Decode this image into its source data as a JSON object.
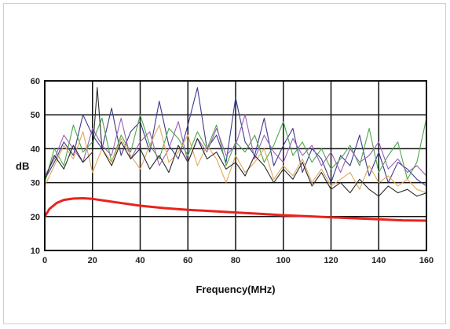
{
  "chart_data": {
    "type": "line",
    "title": "",
    "xlabel": "Frequency(MHz)",
    "ylabel": "dB",
    "xlim": [
      0,
      160
    ],
    "ylim": [
      10,
      60
    ],
    "x_ticks": [
      "0",
      "20",
      "40",
      "60",
      "80",
      "100",
      "120",
      "140",
      "160"
    ],
    "y_ticks": [
      "10",
      "20",
      "30",
      "40",
      "50",
      "60"
    ],
    "grid": true,
    "legend": "none",
    "series": [
      {
        "color": "#e8231d",
        "x": [
          0,
          2,
          5,
          8,
          12,
          16,
          20,
          25,
          30,
          40,
          50,
          60,
          70,
          80,
          90,
          100,
          110,
          120,
          130,
          140,
          150,
          160
        ],
        "values": [
          20,
          22.3,
          24,
          24.9,
          25.3,
          25.4,
          25.2,
          24.7,
          24.2,
          23.2,
          22.5,
          22,
          21.6,
          21.2,
          20.8,
          20.4,
          20.1,
          19.8,
          19.5,
          19.2,
          18.9,
          18.8
        ]
      },
      {
        "color": "#3a3a8c",
        "x": [
          0,
          4,
          8,
          12,
          16,
          20,
          24,
          28,
          32,
          36,
          40,
          44,
          48,
          52,
          56,
          60,
          64,
          68,
          72,
          76,
          80,
          84,
          88,
          92,
          96,
          100,
          104,
          108,
          112,
          116,
          120,
          124,
          128,
          132,
          136,
          140,
          144,
          148,
          152,
          156,
          160
        ],
        "values": [
          31,
          36,
          42,
          38,
          50,
          44,
          40,
          52,
          38,
          45,
          48,
          39,
          54,
          41,
          37,
          47,
          58,
          40,
          44,
          36,
          55,
          42,
          38,
          49,
          35,
          41,
          46,
          33,
          40,
          37,
          30,
          38,
          35,
          44,
          32,
          39,
          30,
          36,
          34,
          31,
          29
        ]
      },
      {
        "color": "#4aa84a",
        "x": [
          0,
          4,
          8,
          12,
          16,
          20,
          24,
          28,
          32,
          36,
          40,
          44,
          48,
          52,
          56,
          60,
          64,
          68,
          72,
          76,
          80,
          84,
          88,
          92,
          96,
          100,
          104,
          108,
          112,
          116,
          120,
          124,
          128,
          132,
          136,
          140,
          144,
          148,
          152,
          156,
          160
        ],
        "values": [
          30,
          40,
          35,
          47,
          39,
          42,
          49,
          36,
          44,
          39,
          50,
          41,
          37,
          46,
          43,
          38,
          45,
          40,
          47,
          35,
          42,
          39,
          44,
          36,
          41,
          48,
          38,
          42,
          36,
          40,
          34,
          37,
          41,
          35,
          46,
          33,
          38,
          42,
          31,
          36,
          49
        ]
      },
      {
        "color": "#9a5fb8",
        "x": [
          0,
          4,
          8,
          12,
          16,
          20,
          24,
          28,
          32,
          36,
          40,
          44,
          48,
          52,
          56,
          60,
          64,
          68,
          72,
          76,
          80,
          84,
          88,
          92,
          96,
          100,
          104,
          108,
          112,
          116,
          120,
          124,
          128,
          132,
          136,
          140,
          144,
          148,
          152,
          156,
          160
        ],
        "values": [
          32,
          37,
          44,
          40,
          36,
          46,
          41,
          38,
          49,
          37,
          42,
          45,
          35,
          40,
          48,
          36,
          43,
          39,
          46,
          38,
          41,
          50,
          37,
          44,
          39,
          36,
          43,
          38,
          41,
          35,
          39,
          33,
          40,
          36,
          38,
          42,
          34,
          37,
          33,
          35,
          32
        ]
      },
      {
        "color": "#e0a85a",
        "x": [
          0,
          4,
          8,
          12,
          16,
          20,
          24,
          28,
          32,
          36,
          40,
          44,
          48,
          52,
          56,
          60,
          64,
          68,
          72,
          76,
          80,
          84,
          88,
          92,
          96,
          100,
          104,
          108,
          112,
          116,
          120,
          124,
          128,
          132,
          136,
          140,
          144,
          148,
          152,
          156,
          160
        ],
        "values": [
          29,
          35,
          41,
          37,
          45,
          33,
          40,
          36,
          43,
          38,
          34,
          41,
          47,
          36,
          39,
          44,
          35,
          41,
          37,
          30,
          38,
          33,
          36,
          40,
          31,
          35,
          32,
          37,
          30,
          34,
          29,
          31,
          33,
          28,
          35,
          30,
          32,
          29,
          31,
          28,
          27
        ]
      },
      {
        "color": "#2a2a2a",
        "x": [
          0,
          4,
          8,
          12,
          16,
          20,
          22,
          24,
          28,
          32,
          36,
          40,
          44,
          48,
          52,
          56,
          60,
          64,
          68,
          72,
          76,
          80,
          84,
          88,
          92,
          96,
          100,
          104,
          108,
          112,
          116,
          120,
          124,
          128,
          132,
          136,
          140,
          144,
          148,
          152,
          156,
          160
        ],
        "values": [
          31,
          38,
          34,
          41,
          36,
          39,
          58,
          40,
          35,
          42,
          37,
          40,
          34,
          38,
          33,
          41,
          36,
          43,
          37,
          39,
          34,
          36,
          32,
          38,
          35,
          30,
          34,
          31,
          36,
          29,
          33,
          28,
          30,
          27,
          31,
          28,
          26,
          29,
          27,
          28,
          26,
          27
        ]
      }
    ]
  }
}
